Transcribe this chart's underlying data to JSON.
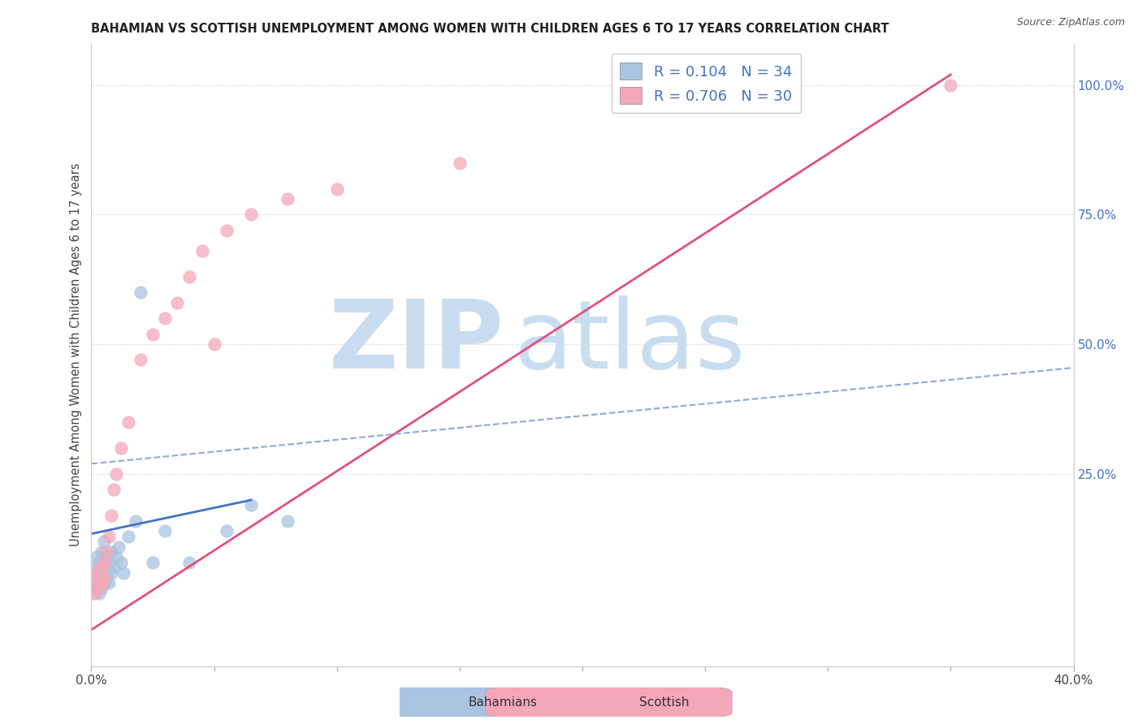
{
  "title": "BAHAMIAN VS SCOTTISH UNEMPLOYMENT AMONG WOMEN WITH CHILDREN AGES 6 TO 17 YEARS CORRELATION CHART",
  "source": "Source: ZipAtlas.com",
  "ylabel": "Unemployment Among Women with Children Ages 6 to 17 years",
  "right_yticks": [
    "100.0%",
    "75.0%",
    "50.0%",
    "25.0%"
  ],
  "right_ytick_vals": [
    1.0,
    0.75,
    0.5,
    0.25
  ],
  "legend_label1": "R = 0.104   N = 34",
  "legend_label2": "R = 0.706   N = 30",
  "bahamians_color": "#a8c4e0",
  "scottish_color": "#f4a7b9",
  "bahamians_line_color": "#4472c4",
  "scottish_line_color": "#e05080",
  "dashed_line_color": "#90a8d0",
  "watermark_zip": "ZIP",
  "watermark_atlas": "atlas",
  "watermark_color": "#c8ddf0",
  "xlim": [
    0.0,
    0.4
  ],
  "ylim": [
    -0.12,
    1.08
  ],
  "grid_yticks": [
    1.0,
    0.75,
    0.5,
    0.25
  ],
  "grid_color": "#cccccc",
  "background_color": "#ffffff",
  "title_fontsize": 10.5,
  "source_fontsize": 9,
  "legend_fontsize": 13,
  "bah_line_x": [
    0.0,
    0.065
  ],
  "bah_line_y": [
    0.135,
    0.2
  ],
  "dashed_line_x": [
    0.0,
    0.4
  ],
  "dashed_line_y": [
    0.27,
    0.455
  ],
  "scot_line_x": [
    0.0,
    0.35
  ],
  "scot_line_y": [
    -0.05,
    1.02
  ],
  "bah_x": [
    0.001,
    0.001,
    0.002,
    0.002,
    0.002,
    0.003,
    0.003,
    0.003,
    0.004,
    0.004,
    0.004,
    0.005,
    0.005,
    0.005,
    0.006,
    0.006,
    0.007,
    0.007,
    0.008,
    0.008,
    0.009,
    0.01,
    0.011,
    0.012,
    0.013,
    0.015,
    0.018,
    0.02,
    0.025,
    0.03,
    0.04,
    0.055,
    0.065,
    0.08
  ],
  "bah_y": [
    0.04,
    0.07,
    0.03,
    0.06,
    0.09,
    0.02,
    0.05,
    0.08,
    0.03,
    0.07,
    0.1,
    0.04,
    0.08,
    0.12,
    0.05,
    0.09,
    0.04,
    0.08,
    0.06,
    0.1,
    0.07,
    0.09,
    0.11,
    0.08,
    0.06,
    0.13,
    0.16,
    0.6,
    0.08,
    0.14,
    0.08,
    0.14,
    0.19,
    0.16
  ],
  "scot_x": [
    0.001,
    0.002,
    0.002,
    0.003,
    0.003,
    0.004,
    0.004,
    0.005,
    0.005,
    0.006,
    0.007,
    0.008,
    0.009,
    0.01,
    0.012,
    0.015,
    0.02,
    0.025,
    0.03,
    0.035,
    0.04,
    0.045,
    0.05,
    0.055,
    0.065,
    0.08,
    0.1,
    0.15,
    0.28,
    0.35
  ],
  "scot_y": [
    0.02,
    0.04,
    0.06,
    0.03,
    0.05,
    0.04,
    0.07,
    0.05,
    0.08,
    0.1,
    0.13,
    0.17,
    0.22,
    0.25,
    0.3,
    0.35,
    0.47,
    0.52,
    0.55,
    0.58,
    0.63,
    0.68,
    0.5,
    0.72,
    0.75,
    0.78,
    0.8,
    0.85,
    0.97,
    1.0
  ]
}
